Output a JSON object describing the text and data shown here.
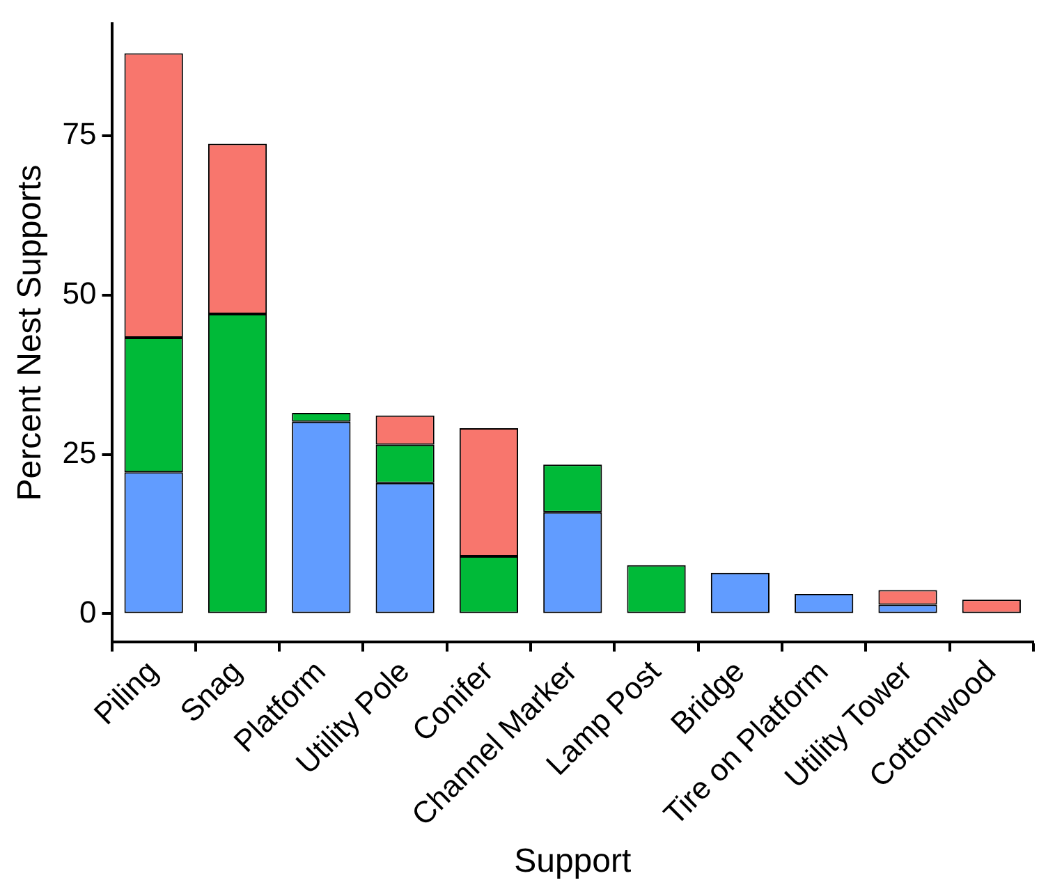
{
  "chart_data": {
    "type": "bar",
    "stacked": true,
    "xlabel": "Support",
    "ylabel": "Percent Nest Supports",
    "categories": [
      "Piling",
      "Snag",
      "Platform",
      "Utility Pole",
      "Conifer",
      "Channel Marker",
      "Lamp Post",
      "Bridge",
      "Tire on Platform",
      "Utility Tower",
      "Cottonwood"
    ],
    "series": [
      {
        "color": "#619cff",
        "values": [
          22.2,
          null,
          30.1,
          20.5,
          null,
          15.9,
          null,
          6.4,
          3.1,
          1.4,
          null
        ]
      },
      {
        "color": "#00ba38",
        "values": [
          21.1,
          47.0,
          1.4,
          6.0,
          9.0,
          7.5,
          7.6,
          null,
          null,
          null,
          null
        ]
      },
      {
        "color": "#f8766d",
        "values": [
          44.6,
          26.7,
          null,
          4.6,
          20.1,
          null,
          null,
          null,
          null,
          2.3,
          2.2
        ]
      }
    ],
    "ylim": [
      -4.4,
      92.5
    ],
    "yticks": [
      0,
      25,
      50,
      75
    ],
    "legend": false
  }
}
